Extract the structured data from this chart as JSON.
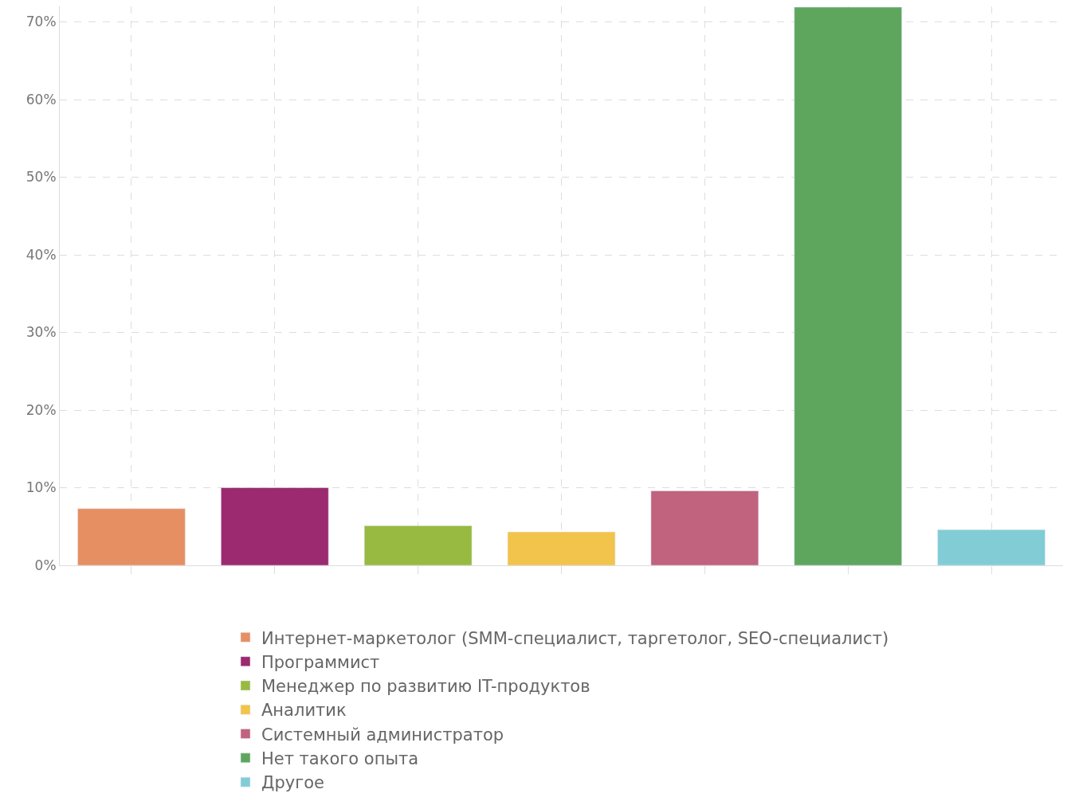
{
  "chart_data": {
    "type": "bar",
    "categories": [
      null,
      null,
      null,
      null,
      null,
      null,
      null
    ],
    "series": [
      {
        "name": "Интернет-маркетолог (SMM-специалист, таргетолог, SEO-специалист)",
        "color": "#e68f63",
        "values": [
          7.3,
          null,
          null,
          null,
          null,
          null,
          null
        ]
      },
      {
        "name": "Программист",
        "color": "#9c2a70",
        "values": [
          null,
          10,
          null,
          null,
          null,
          null,
          null
        ]
      },
      {
        "name": "Менеджер по развитию IT-продуктов",
        "color": "#98ba40",
        "values": [
          null,
          null,
          5.1,
          null,
          null,
          null,
          null
        ]
      },
      {
        "name": "Аналитик",
        "color": "#f2c44b",
        "values": [
          null,
          null,
          null,
          4.3,
          null,
          null,
          null
        ]
      },
      {
        "name": "Системный администратор",
        "color": "#c1637e",
        "values": [
          null,
          null,
          null,
          null,
          9.6,
          null,
          null
        ]
      },
      {
        "name": "Нет такого опыта",
        "color": "#5ea65e",
        "values": [
          null,
          null,
          null,
          null,
          null,
          71.9,
          null
        ]
      },
      {
        "name": "Другое",
        "color": "#82ccd6",
        "values": [
          null,
          null,
          null,
          null,
          null,
          null,
          4.6
        ]
      }
    ],
    "ylim": [
      0,
      72
    ],
    "yticks": [
      {
        "value": 0,
        "label": "0%"
      },
      {
        "value": 10,
        "label": "10%"
      },
      {
        "value": 20,
        "label": "20%"
      },
      {
        "value": 30,
        "label": "30%"
      },
      {
        "value": 40,
        "label": "40%"
      },
      {
        "value": 50,
        "label": "50%"
      },
      {
        "value": 60,
        "label": "60%"
      },
      {
        "value": 70,
        "label": "70%"
      }
    ],
    "grid": true,
    "legend": "bottom"
  }
}
